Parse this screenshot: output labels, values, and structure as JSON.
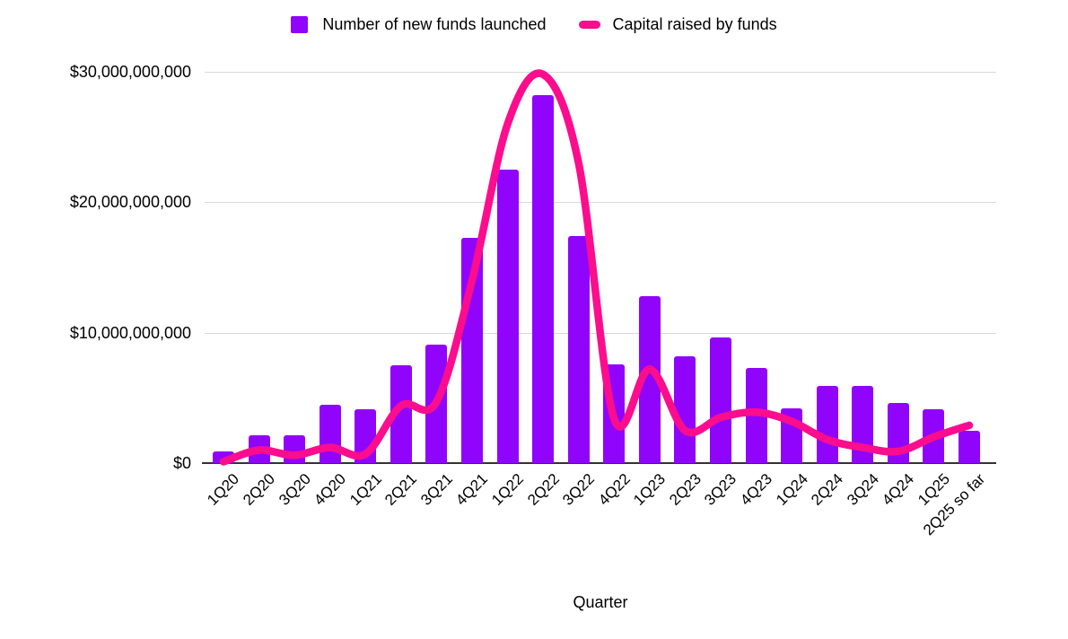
{
  "legend": {
    "items": [
      {
        "label": "Number of new funds launched",
        "color": "#9004FC",
        "swatch": "square"
      },
      {
        "label": "Capital raised by funds",
        "color": "#FB0D8D",
        "swatch": "dash"
      }
    ]
  },
  "x_axis_title": "Quarter",
  "chart_data": {
    "type": "combo",
    "title": "",
    "categories": [
      "1Q20",
      "2Q20",
      "3Q20",
      "4Q20",
      "1Q21",
      "2Q21",
      "3Q21",
      "4Q21",
      "1Q22",
      "2Q22",
      "3Q22",
      "4Q22",
      "1Q23",
      "2Q23",
      "3Q23",
      "4Q23",
      "1Q24",
      "2Q24",
      "3Q24",
      "4Q24",
      "1Q25",
      "2Q25 so far"
    ],
    "series": [
      {
        "name": "Number of new funds launched",
        "type": "bar",
        "color": "#9004FC",
        "value_scale_note": "bars plotted against an unlabeled secondary axis; heights read in left-axis billions-equivalent",
        "values": [
          0.9,
          2.1,
          2.1,
          4.5,
          4.1,
          7.5,
          9.1,
          17.3,
          22.5,
          28.2,
          17.4,
          7.6,
          12.8,
          8.2,
          9.6,
          7.3,
          4.2,
          5.9,
          5.9,
          4.6,
          4.1,
          2.5
        ]
      },
      {
        "name": "Capital raised by funds",
        "type": "line",
        "color": "#FB0D8D",
        "unit": "USD billions (left axis)",
        "values": [
          0.1,
          1.0,
          0.6,
          1.2,
          0.7,
          4.4,
          4.7,
          14.0,
          26.0,
          29.8,
          23.0,
          3.4,
          7.2,
          2.5,
          3.5,
          3.9,
          3.2,
          1.8,
          1.2,
          0.9,
          2.0,
          2.9
        ]
      }
    ],
    "y_axis": {
      "min": 0,
      "max": 30,
      "ticks": [
        {
          "label": "$0",
          "value": 0
        },
        {
          "label": "$10,000,000,000",
          "value": 10
        },
        {
          "label": "$20,000,000,000",
          "value": 20
        },
        {
          "label": "$30,000,000,000",
          "value": 30
        }
      ]
    },
    "x_axis": {
      "title": "Quarter",
      "label_rotation_deg": -45
    },
    "legend_position": "top",
    "gridlines": true,
    "colors": {
      "grid": "#d9d9d9",
      "axis_line": "#333333",
      "background": "#ffffff",
      "text": "#000000"
    }
  }
}
